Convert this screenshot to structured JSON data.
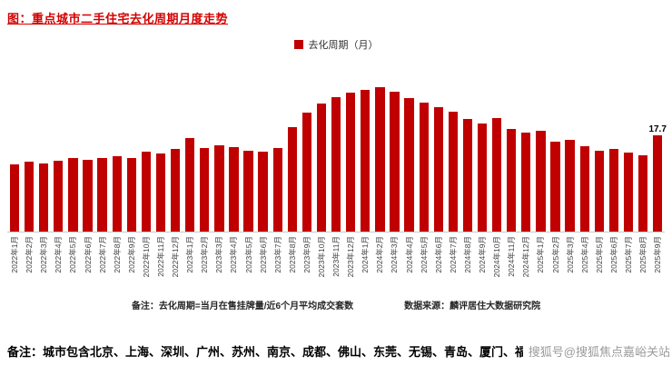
{
  "page": {
    "title": "图：重点城市二手住宅去化周期月度走势",
    "legend_label": "去化周期（月）",
    "note_left": "备注：去化周期=当月在售挂牌量/近6个月平均成交套数",
    "source": "数据来源：麟评居住大数据研究院",
    "footnote": "备注：城市包含北京、上海、深圳、广州、苏州、南京、成都、佛山、东莞、无锡、青岛、厦门、福州。",
    "watermark": "搜狐号@搜狐焦点嘉峪关站",
    "colors": {
      "bar": "#c00000",
      "title": "#d40000"
    }
  },
  "chart_data": {
    "type": "bar",
    "title": "重点城市二手住宅去化周期月度走势",
    "legend": [
      "去化周期（月）"
    ],
    "ylabel": "去化周期（月）",
    "xlabel": "",
    "ylim": [
      0,
      32
    ],
    "grid": false,
    "legend_position": "top-center",
    "categories": [
      "2022年1月",
      "2022年2月",
      "2022年3月",
      "2022年4月",
      "2022年5月",
      "2022年6月",
      "2022年7月",
      "2022年8月",
      "2022年9月",
      "2022年10月",
      "2022年11月",
      "2022年12月",
      "2023年1月",
      "2023年2月",
      "2023年3月",
      "2023年4月",
      "2023年5月",
      "2023年6月",
      "2023年7月",
      "2023年8月",
      "2023年9月",
      "2023年10月",
      "2023年11月",
      "2023年12月",
      "2024年1月",
      "2024年2月",
      "2024年3月",
      "2024年4月",
      "2024年5月",
      "2024年6月",
      "2024年7月",
      "2024年8月",
      "2024年9月",
      "2024年10月",
      "2024年11月",
      "2024年12月",
      "2025年1月",
      "2025年2月",
      "2025年3月",
      "2025年4月",
      "2025年5月",
      "2025年6月",
      "2025年7月",
      "2025年8月",
      "2025年9月"
    ],
    "values": [
      12.4,
      12.9,
      12.5,
      13.1,
      13.5,
      13.2,
      13.6,
      13.9,
      13.6,
      14.8,
      14.5,
      15.2,
      17.2,
      15.5,
      16.0,
      15.6,
      15.0,
      14.7,
      15.4,
      19.3,
      22.0,
      23.6,
      24.8,
      25.6,
      26.2,
      26.6,
      25.8,
      24.6,
      23.8,
      23.0,
      22.2,
      20.7,
      19.9,
      21.0,
      19.0,
      18.2,
      18.6,
      16.6,
      16.9,
      15.8,
      14.9,
      15.3,
      14.6,
      14.1,
      17.7
    ],
    "annotations": [
      {
        "index": 44,
        "text": "17.7"
      }
    ]
  }
}
